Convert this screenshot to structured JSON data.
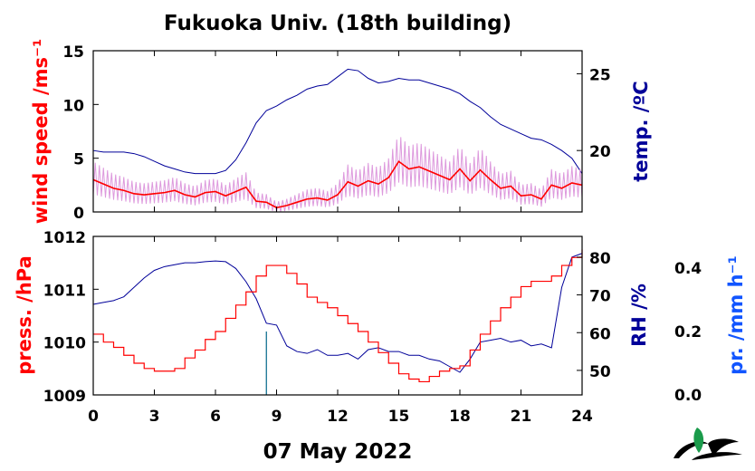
{
  "title": "Fukuoka Univ. (18th building)",
  "date_label": "07 May 2022",
  "colors": {
    "wind": "#ff0000",
    "wind_raw": "#dd99dd",
    "temp": "#000099",
    "press": "#ff0000",
    "rh": "#000099",
    "precip": "#1155ff",
    "axis": "#000000"
  },
  "chart_data": [
    {
      "type": "line",
      "title": "",
      "xlabel": "",
      "xlim": [
        0,
        24
      ],
      "x_ticks": [
        "0",
        "3",
        "6",
        "9",
        "12",
        "15",
        "18",
        "21",
        "24"
      ],
      "y_left": {
        "label": "wind speed /ms⁻¹",
        "lim": [
          0,
          15
        ],
        "ticks": [
          "0",
          "5",
          "10",
          "15"
        ]
      },
      "y_right": {
        "label": "temp. /ºC",
        "lim": [
          16,
          26.5
        ],
        "ticks": [
          "20",
          "25"
        ]
      },
      "series": [
        {
          "axis": "left",
          "x": [
            0,
            0.5,
            1,
            1.5,
            2,
            2.5,
            3,
            3.5,
            4,
            4.5,
            5,
            5.5,
            6,
            6.5,
            7,
            7.5,
            8,
            8.5,
            9,
            9.5,
            10,
            10.5,
            11,
            11.5,
            12,
            12.5,
            13,
            13.5,
            14,
            14.5,
            15,
            15.5,
            16,
            16.5,
            17,
            17.5,
            18,
            18.5,
            19,
            19.5,
            20,
            20.5,
            21,
            21.5,
            22,
            22.5,
            23,
            23.5,
            24
          ],
          "values": [
            3.0,
            2.6,
            2.2,
            2.0,
            1.7,
            1.6,
            1.7,
            1.8,
            2.0,
            1.6,
            1.4,
            1.8,
            1.9,
            1.5,
            1.9,
            2.3,
            1.0,
            0.9,
            0.4,
            0.6,
            0.9,
            1.2,
            1.3,
            1.1,
            1.6,
            2.8,
            2.4,
            2.9,
            2.6,
            3.2,
            4.7,
            4.0,
            4.2,
            3.8,
            3.4,
            3.0,
            4.0,
            2.9,
            3.9,
            3.0,
            2.2,
            2.4,
            1.5,
            1.6,
            1.2,
            2.5,
            2.2,
            2.7,
            2.5
          ]
        },
        {
          "axis": "right",
          "x": [
            0,
            0.5,
            1,
            1.5,
            2,
            2.5,
            3,
            3.5,
            4,
            4.5,
            5,
            5.5,
            6,
            6.5,
            7,
            7.5,
            8,
            8.5,
            9,
            9.5,
            10,
            10.5,
            11,
            11.5,
            12,
            12.5,
            13,
            13.5,
            14,
            14.5,
            15,
            15.5,
            16,
            16.5,
            17,
            17.5,
            18,
            18.5,
            19,
            19.5,
            20,
            20.5,
            21,
            21.5,
            22,
            22.5,
            23,
            23.5,
            24
          ],
          "values": [
            20.0,
            19.9,
            19.9,
            19.9,
            19.8,
            19.6,
            19.3,
            19.0,
            18.8,
            18.6,
            18.5,
            18.5,
            18.5,
            18.7,
            19.4,
            20.5,
            21.8,
            22.6,
            22.9,
            23.3,
            23.6,
            24.0,
            24.2,
            24.3,
            24.8,
            25.3,
            25.2,
            24.7,
            24.4,
            24.5,
            24.7,
            24.6,
            24.6,
            24.4,
            24.2,
            24.0,
            23.7,
            23.2,
            22.8,
            22.2,
            21.7,
            21.4,
            21.1,
            20.8,
            20.7,
            20.4,
            20.0,
            19.5,
            18.5
          ]
        }
      ]
    },
    {
      "type": "line",
      "title": "",
      "xlabel": "",
      "xlim": [
        0,
        24
      ],
      "x_ticks": [
        "0",
        "3",
        "6",
        "9",
        "12",
        "15",
        "18",
        "21",
        "24"
      ],
      "y_left": {
        "label": "press. /hPa",
        "lim": [
          1009,
          1012
        ],
        "ticks": [
          "1009",
          "1010",
          "1011",
          "1012"
        ]
      },
      "y_right": {
        "label": "RH /%",
        "lim": [
          43.5,
          85.5
        ],
        "ticks": [
          "50",
          "60",
          "70",
          "80"
        ]
      },
      "y_right2": {
        "label": "pr. /mm h⁻¹",
        "lim": [
          0,
          0.5
        ],
        "ticks": [
          "0.0",
          "0.2",
          "0.4"
        ]
      },
      "series": [
        {
          "axis": "left",
          "x": [
            0,
            0.5,
            1,
            1.5,
            2,
            2.5,
            3,
            3.5,
            4,
            4.5,
            5,
            5.5,
            6,
            6.5,
            7,
            7.5,
            8,
            8.5,
            9,
            9.5,
            10,
            10.5,
            11,
            11.5,
            12,
            12.5,
            13,
            13.5,
            14,
            14.5,
            15,
            15.5,
            16,
            16.5,
            17,
            17.5,
            18,
            18.5,
            19,
            19.5,
            20,
            20.5,
            21,
            21.5,
            22,
            22.5,
            23,
            23.5,
            24
          ],
          "values": [
            1010.15,
            1010.0,
            1009.9,
            1009.75,
            1009.6,
            1009.5,
            1009.45,
            1009.45,
            1009.5,
            1009.7,
            1009.85,
            1010.05,
            1010.2,
            1010.45,
            1010.7,
            1010.95,
            1011.25,
            1011.45,
            1011.45,
            1011.3,
            1011.1,
            1010.85,
            1010.75,
            1010.65,
            1010.5,
            1010.35,
            1010.2,
            1010.0,
            1009.8,
            1009.6,
            1009.4,
            1009.3,
            1009.25,
            1009.35,
            1009.45,
            1009.5,
            1009.55,
            1009.85,
            1010.15,
            1010.4,
            1010.65,
            1010.85,
            1011.05,
            1011.15,
            1011.15,
            1011.25,
            1011.45,
            1011.6,
            1011.75
          ]
        },
        {
          "axis": "right",
          "x": [
            0,
            0.5,
            1,
            1.5,
            2,
            2.5,
            3,
            3.5,
            4,
            4.5,
            5,
            5.5,
            6,
            6.5,
            7,
            7.5,
            8,
            8.5,
            9,
            9.5,
            10,
            10.5,
            11,
            11.5,
            12,
            12.5,
            13,
            13.5,
            14,
            14.5,
            15,
            15.5,
            16,
            16.5,
            17,
            17.5,
            18,
            18.5,
            19,
            19.5,
            20,
            20.5,
            21,
            21.5,
            22,
            22.5,
            23,
            23.5,
            24
          ],
          "values": [
            67.5,
            68.0,
            68.5,
            69.5,
            72.0,
            74.5,
            76.5,
            77.5,
            78.0,
            78.5,
            78.5,
            78.8,
            79.0,
            78.8,
            77.0,
            73.5,
            69.0,
            62.5,
            62.0,
            56.5,
            55.0,
            54.5,
            55.5,
            54.0,
            54.0,
            54.5,
            53.0,
            55.5,
            56.0,
            55.0,
            55.0,
            54.0,
            54.0,
            53.0,
            52.5,
            51.0,
            49.5,
            53.0,
            57.5,
            58.0,
            58.5,
            57.5,
            58.0,
            56.5,
            57.0,
            56.0,
            72.0,
            80.0,
            81.0
          ]
        },
        {
          "axis": "right2",
          "x": [
            8.5
          ],
          "values": [
            0.2
          ]
        }
      ]
    }
  ]
}
